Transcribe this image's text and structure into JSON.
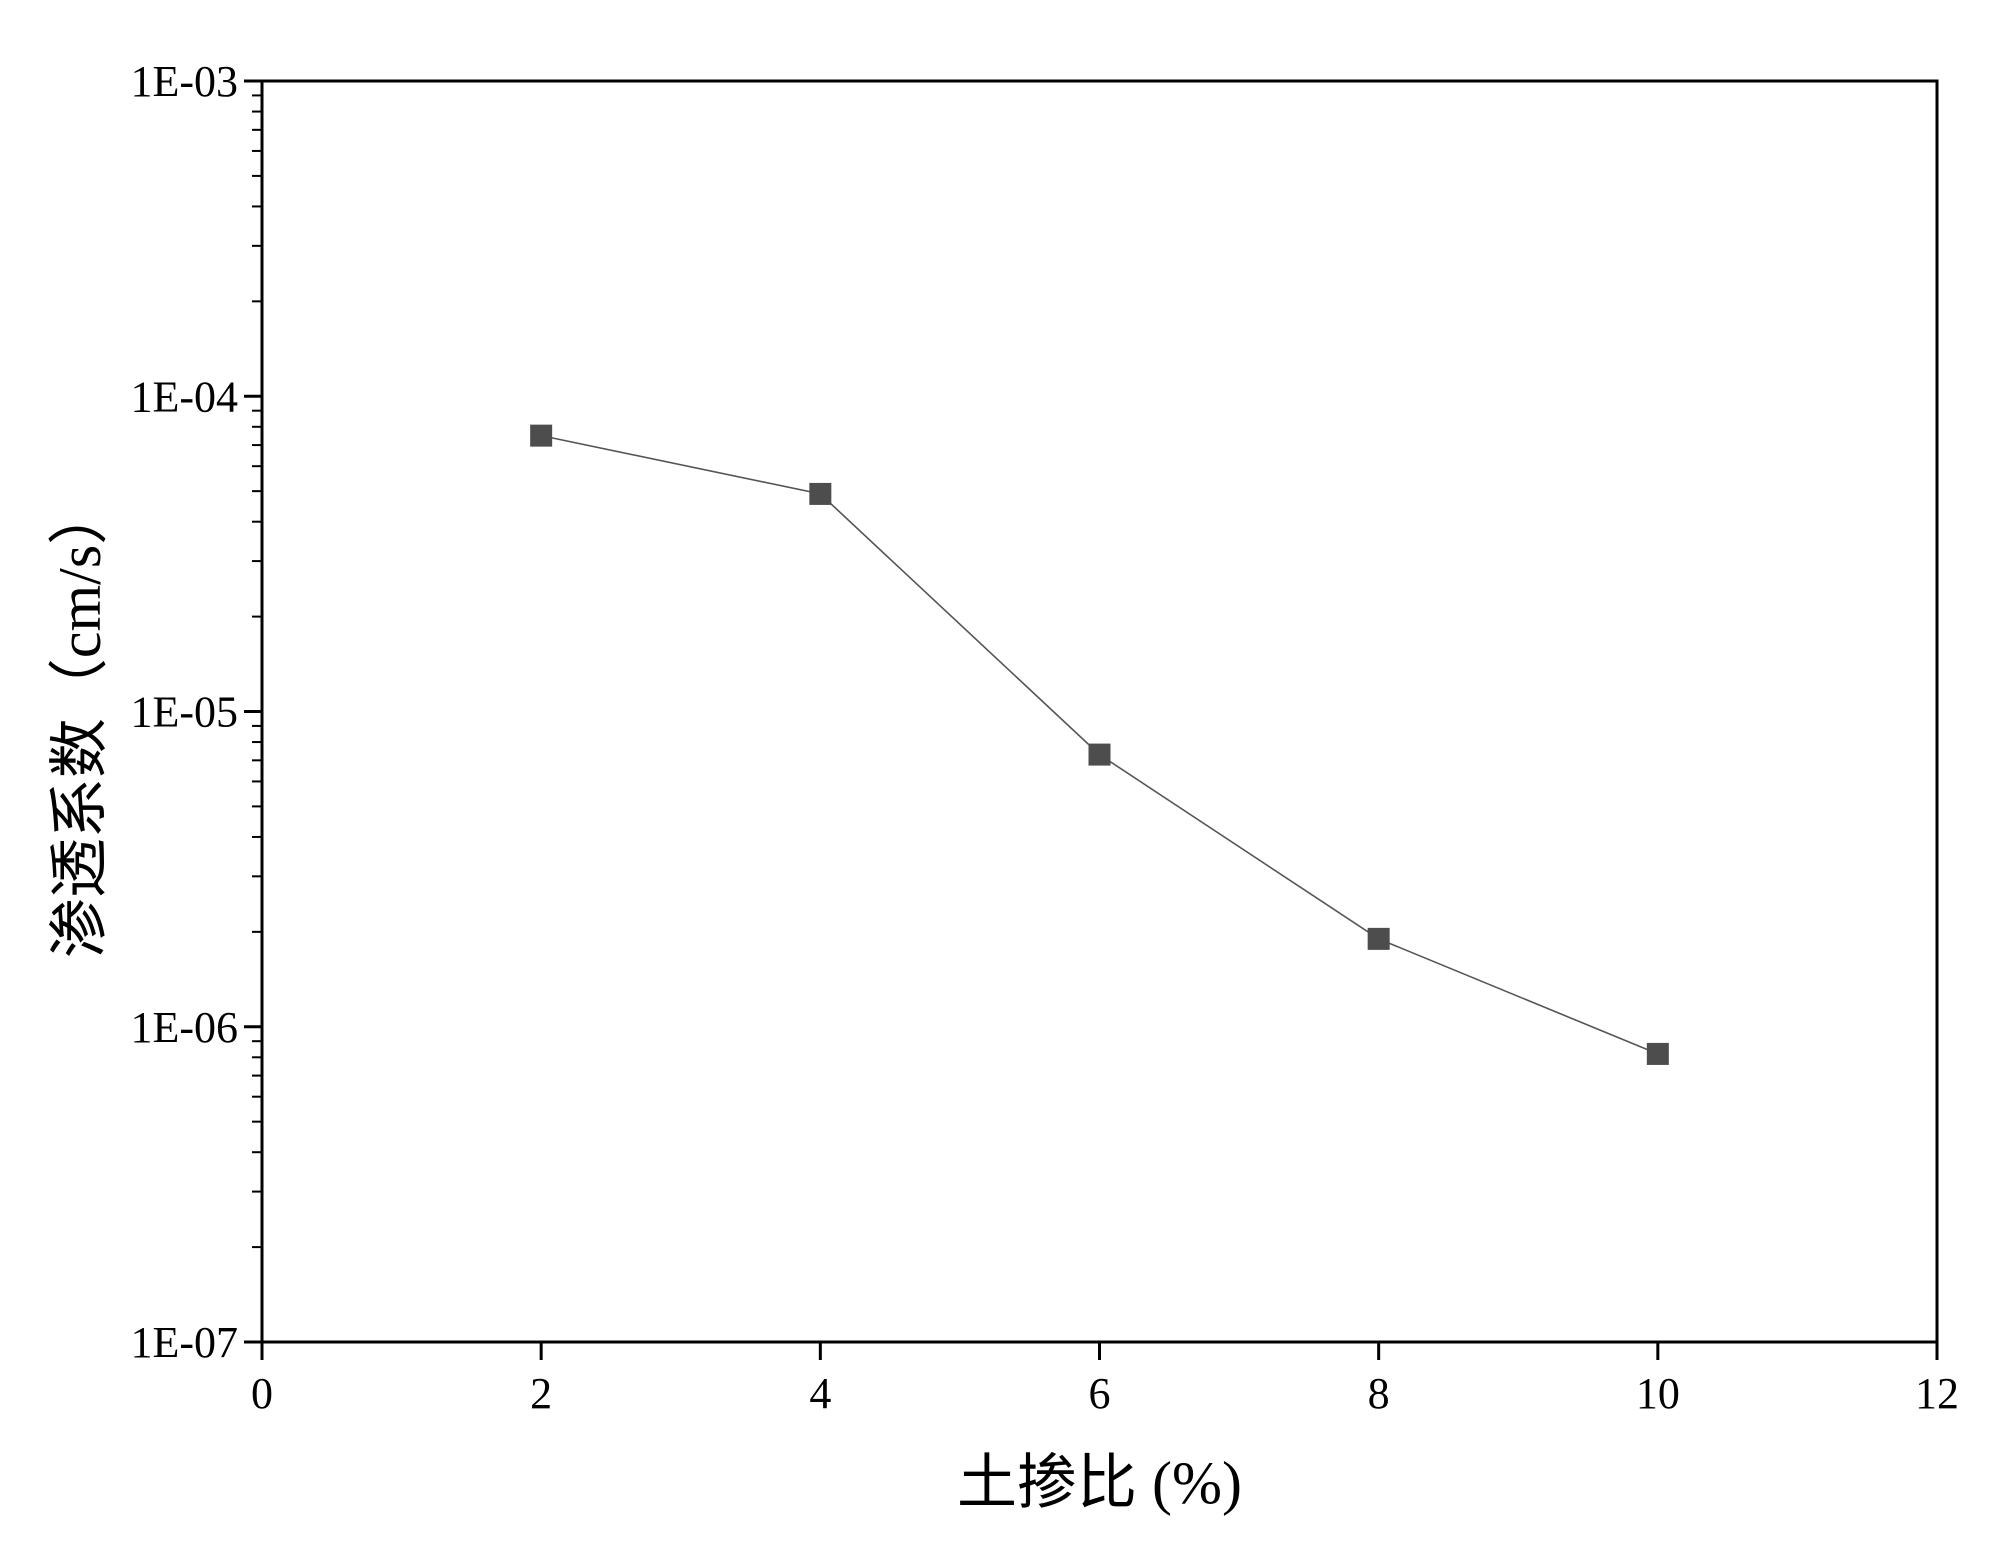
{
  "chart_data": {
    "type": "line",
    "title": "",
    "xlabel": "土掺比 (%)",
    "ylabel": "渗透系数（cm/s）",
    "x_ticks": [
      "0",
      "2",
      "4",
      "6",
      "8",
      "10",
      "12"
    ],
    "y_ticks": [
      "1E-07",
      "1E-06",
      "1E-05",
      "1E-04",
      "1E-03"
    ],
    "xlim": [
      0,
      12
    ],
    "ylim": [
      1e-07,
      0.001
    ],
    "yscale": "log",
    "grid": false,
    "legend": "none",
    "series": [
      {
        "x": [
          2,
          4,
          6,
          8,
          10
        ],
        "y": [
          7.5e-05,
          4.9e-05,
          7.3e-06,
          1.9e-06,
          8.2e-07
        ],
        "marker": "square",
        "marker_color": "#4d4d4d",
        "line_color": "#555555"
      }
    ]
  }
}
